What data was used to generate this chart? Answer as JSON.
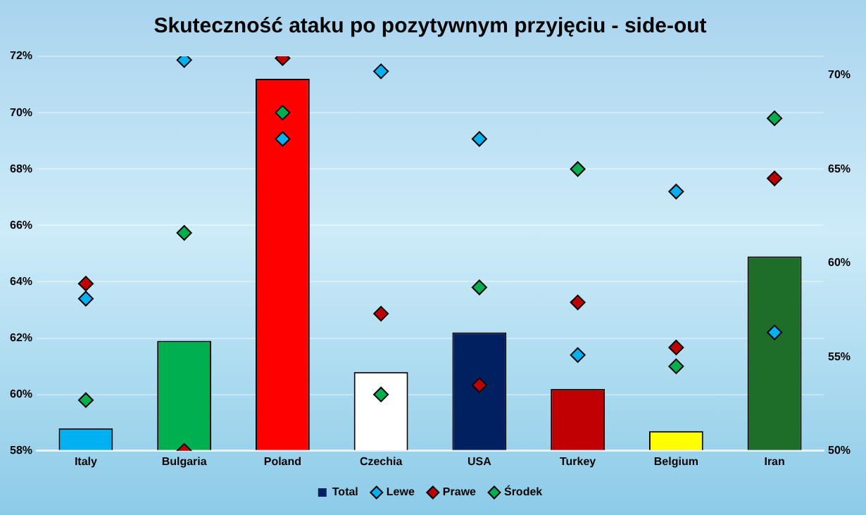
{
  "chart_data": {
    "type": "bar",
    "title": "Skuteczność ataku po pozytywnym przyjęciu - side-out",
    "categories": [
      "Italy",
      "Bulgaria",
      "Poland",
      "Czechia",
      "USA",
      "Turkey",
      "Belgium",
      "Iran"
    ],
    "series": [
      {
        "name": "Total",
        "color": "#002060",
        "colors": [
          "#00b0f0",
          "#00b050",
          "#ff0000",
          "#ffffff",
          "#002060",
          "#c00000",
          "#ffff00",
          "#1e6e2a"
        ],
        "values": [
          58.8,
          61.9,
          71.2,
          60.8,
          62.2,
          60.2,
          58.7,
          64.9
        ]
      },
      {
        "name": "Lewe",
        "type": "scatter",
        "axis": "y2",
        "color": "#00b0f0",
        "x": [
          "Italy",
          "Bulgaria",
          "Poland",
          "Czechia",
          "USA",
          "Turkey",
          "Belgium",
          "Iran"
        ],
        "values": [
          58.1,
          70.8,
          66.6,
          70.2,
          66.6,
          55.1,
          63.8,
          56.3
        ]
      },
      {
        "name": "Prawe",
        "type": "scatter",
        "axis": "y2",
        "color": "#c00000",
        "x": [
          "Italy",
          "Bulgaria",
          "Poland",
          "Czechia",
          "USA",
          "Turkey",
          "Belgium",
          "Iran"
        ],
        "values": [
          58.9,
          50.0,
          70.9,
          57.3,
          53.5,
          57.9,
          55.5,
          64.5
        ]
      },
      {
        "name": "Środek",
        "type": "scatter",
        "axis": "y2",
        "color": "#00b050",
        "x": [
          "Italy",
          "Bulgaria",
          "Poland",
          "Czechia",
          "USA",
          "Turkey",
          "Belgium",
          "Iran"
        ],
        "values": [
          52.7,
          61.6,
          68.0,
          53.0,
          58.7,
          65.0,
          54.5,
          67.7
        ]
      }
    ],
    "ylim": [
      58,
      72
    ],
    "yticks": [
      {
        "value": 58,
        "label": "58%"
      },
      {
        "value": 60,
        "label": "60%"
      },
      {
        "value": 62,
        "label": "62%"
      },
      {
        "value": 64,
        "label": "64%"
      },
      {
        "value": 66,
        "label": "66%"
      },
      {
        "value": 68,
        "label": "68%"
      },
      {
        "value": 70,
        "label": "70%"
      },
      {
        "value": 72,
        "label": "72%"
      }
    ],
    "y2lim": [
      50,
      71
    ],
    "y2ticks": [
      {
        "value": 50,
        "label": "50%"
      },
      {
        "value": 55,
        "label": "55%"
      },
      {
        "value": 60,
        "label": "60%"
      },
      {
        "value": 65,
        "label": "65%"
      },
      {
        "value": 70,
        "label": "70%"
      }
    ],
    "grid": "y",
    "legend": "bottom",
    "marker": "diamond"
  }
}
